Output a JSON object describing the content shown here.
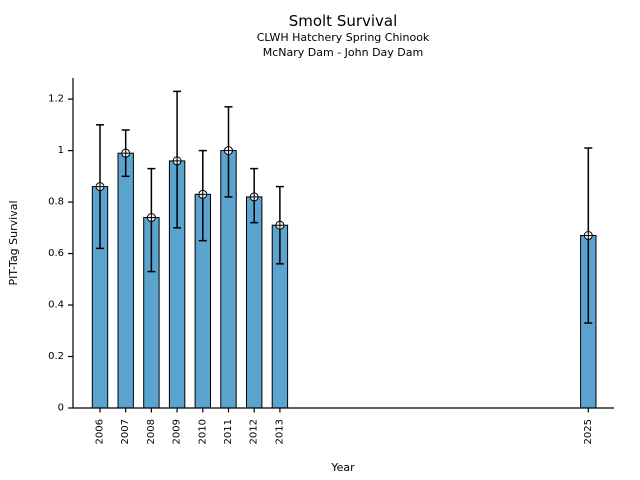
{
  "chart_data": {
    "type": "bar",
    "title": "Smolt Survival",
    "subtitle": [
      "CLWH Hatchery Spring Chinook",
      "McNary Dam - John Day Dam"
    ],
    "xlabel": "Year",
    "ylabel": "PIT-Tag Survival",
    "categories": [
      "2006",
      "2007",
      "2008",
      "2009",
      "2010",
      "2011",
      "2012",
      "2013",
      "2025"
    ],
    "values": [
      0.86,
      0.99,
      0.74,
      0.96,
      0.83,
      1.0,
      0.82,
      0.71,
      0.67
    ],
    "error_low": [
      0.62,
      0.9,
      0.53,
      0.7,
      0.65,
      0.82,
      0.72,
      0.56,
      0.33
    ],
    "error_high": [
      1.1,
      1.08,
      0.93,
      1.23,
      1.0,
      1.17,
      0.93,
      0.86,
      1.01
    ],
    "xlim": [
      2004.95,
      2026.0
    ],
    "ylim": [
      0,
      1.282
    ],
    "yticks": [
      0,
      0.2,
      0.4,
      0.6,
      0.8,
      1,
      1.2
    ],
    "ytick_labels": [
      "0",
      "0.2",
      "0.4",
      "0.6",
      "0.8",
      "1",
      "1.2"
    ],
    "bar_width_years": 0.6,
    "bar_color": "#5BA4CF",
    "edge_color": "#000000",
    "error_color": "#000000",
    "marker": "circle-plus",
    "grid": false,
    "legend": null
  }
}
